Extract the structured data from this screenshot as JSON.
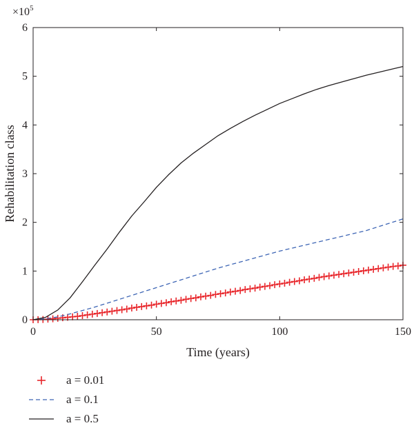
{
  "chart_data": {
    "type": "line",
    "xlabel": "Time (years)",
    "ylabel": "Rehabilitation class",
    "y_multiplier": "×10",
    "y_multiplier_exp": "5",
    "xlim": [
      0,
      150
    ],
    "ylim": [
      0,
      6
    ],
    "x_ticks": [
      "0",
      "50",
      "100",
      "150"
    ],
    "y_ticks": [
      "0",
      "1",
      "2",
      "3",
      "4",
      "5",
      "6"
    ],
    "grid": false,
    "legend_position": "bottom-left, below plot",
    "series": [
      {
        "name": "a = 0.01",
        "style": "plus-markers",
        "color": "#e8262b",
        "x": [
          0,
          2,
          4,
          6,
          8,
          10,
          12,
          14,
          16,
          18,
          20,
          22,
          24,
          26,
          28,
          30,
          32,
          34,
          36,
          38,
          40,
          42,
          44,
          46,
          48,
          50,
          52,
          54,
          56,
          58,
          60,
          62,
          64,
          66,
          68,
          70,
          72,
          74,
          76,
          78,
          80,
          82,
          84,
          86,
          88,
          90,
          92,
          94,
          96,
          98,
          100,
          102,
          104,
          106,
          108,
          110,
          112,
          114,
          116,
          118,
          120,
          122,
          124,
          126,
          128,
          130,
          132,
          134,
          136,
          138,
          140,
          142,
          144,
          146,
          148,
          150
        ],
        "values": [
          0,
          0.002,
          0.006,
          0.012,
          0.02,
          0.03,
          0.04,
          0.05,
          0.06,
          0.07,
          0.085,
          0.1,
          0.115,
          0.13,
          0.145,
          0.16,
          0.175,
          0.19,
          0.205,
          0.22,
          0.24,
          0.255,
          0.27,
          0.285,
          0.3,
          0.32,
          0.335,
          0.35,
          0.37,
          0.385,
          0.4,
          0.42,
          0.435,
          0.45,
          0.47,
          0.485,
          0.5,
          0.52,
          0.535,
          0.55,
          0.57,
          0.585,
          0.6,
          0.62,
          0.635,
          0.65,
          0.67,
          0.685,
          0.7,
          0.72,
          0.735,
          0.75,
          0.77,
          0.785,
          0.8,
          0.82,
          0.835,
          0.85,
          0.87,
          0.885,
          0.9,
          0.915,
          0.93,
          0.945,
          0.96,
          0.975,
          0.99,
          1.005,
          1.02,
          1.035,
          1.05,
          1.065,
          1.08,
          1.095,
          1.105,
          1.12
        ]
      },
      {
        "name": "a = 0.1",
        "style": "dashed",
        "color": "#3c64b4",
        "x": [
          0,
          5,
          10,
          15,
          20,
          25,
          30,
          35,
          40,
          45,
          50,
          55,
          60,
          65,
          70,
          75,
          80,
          85,
          90,
          95,
          100,
          105,
          110,
          115,
          120,
          125,
          130,
          135,
          140,
          145,
          150
        ],
        "values": [
          0,
          0.02,
          0.06,
          0.12,
          0.19,
          0.26,
          0.34,
          0.42,
          0.5,
          0.58,
          0.66,
          0.74,
          0.82,
          0.9,
          0.98,
          1.06,
          1.13,
          1.2,
          1.27,
          1.34,
          1.41,
          1.47,
          1.53,
          1.59,
          1.65,
          1.71,
          1.77,
          1.83,
          1.91,
          1.99,
          2.07
        ]
      },
      {
        "name": "a = 0.5",
        "style": "solid",
        "color": "#231f20",
        "x": [
          0,
          5,
          10,
          15,
          20,
          25,
          30,
          35,
          40,
          45,
          50,
          55,
          60,
          65,
          70,
          75,
          80,
          85,
          90,
          95,
          100,
          105,
          110,
          115,
          120,
          125,
          130,
          135,
          140,
          145,
          150
        ],
        "values": [
          0,
          0.05,
          0.2,
          0.45,
          0.78,
          1.12,
          1.45,
          1.8,
          2.13,
          2.42,
          2.72,
          2.98,
          3.22,
          3.42,
          3.6,
          3.78,
          3.93,
          4.07,
          4.2,
          4.32,
          4.44,
          4.54,
          4.64,
          4.73,
          4.81,
          4.88,
          4.95,
          5.02,
          5.08,
          5.14,
          5.2
        ]
      }
    ]
  }
}
